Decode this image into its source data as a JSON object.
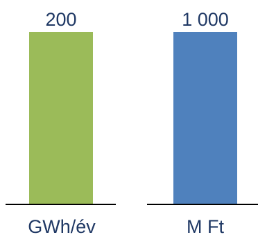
{
  "chart_data": [
    {
      "type": "bar",
      "categories": [
        ""
      ],
      "values": [
        200
      ],
      "value_labels": [
        "200"
      ],
      "unit": "GWh/év",
      "color": "#9bbb59",
      "axis_color": "#000000",
      "label_color": "#1f3864"
    },
    {
      "type": "bar",
      "categories": [
        ""
      ],
      "values": [
        1000
      ],
      "value_labels": [
        "1 000"
      ],
      "unit": "M Ft",
      "color": "#4f81bd",
      "axis_color": "#000000",
      "label_color": "#1f3864"
    }
  ]
}
